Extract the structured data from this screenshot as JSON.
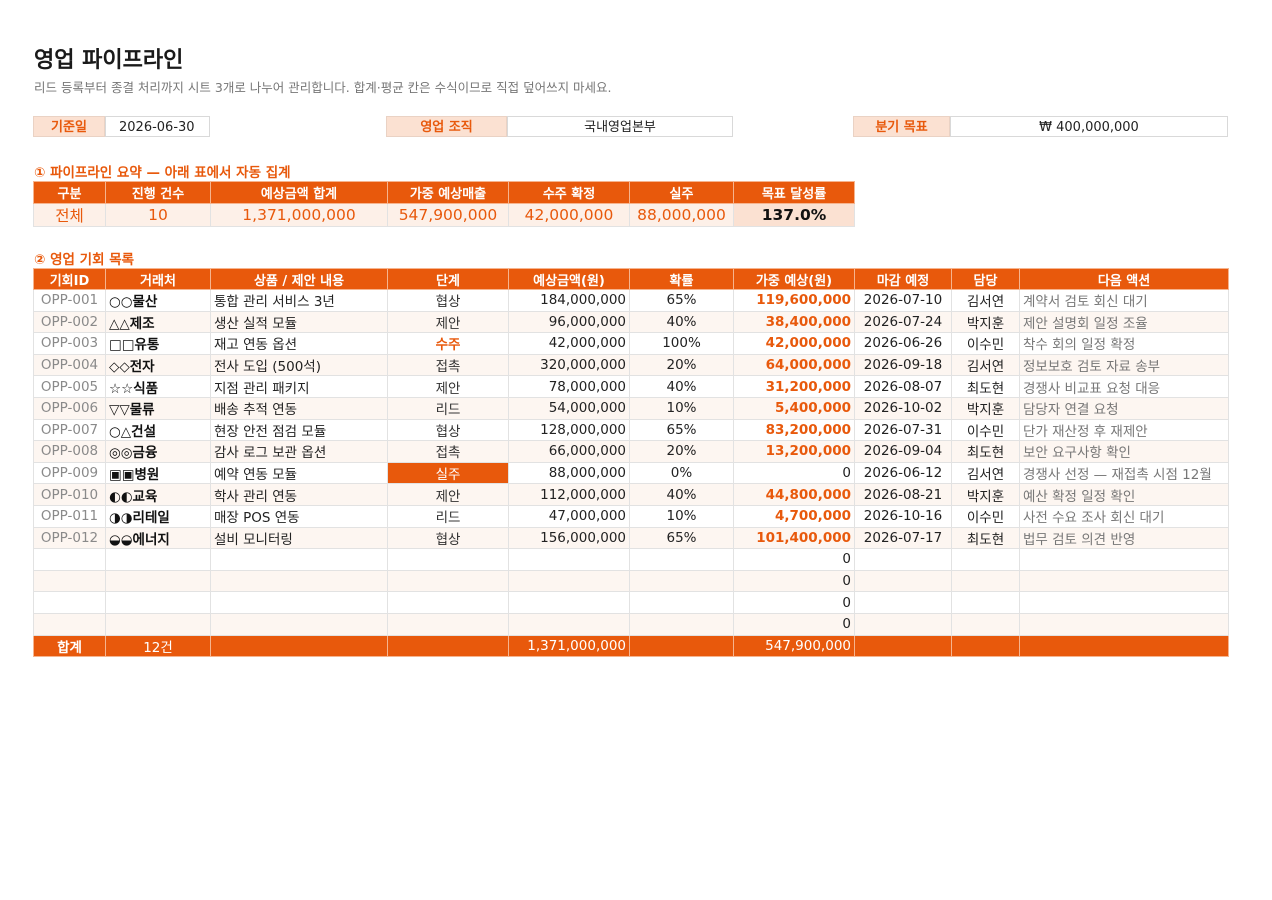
{
  "page": {
    "title": "영업 파이프라인",
    "subtitle": "리드 등록부터 종결 처리까지 시트 3개로 나누어 관리합니다. 합계·평균 칸은 수식이므로 직접 덮어쓰지 마세요."
  },
  "meta": {
    "base_date_label": "기준일",
    "base_date": "2026-06-30",
    "org_label": "영업 조직",
    "org": "국내영업본부",
    "target_label": "분기 목표",
    "target": "₩ 400,000,000"
  },
  "summary": {
    "section_title": "① 파이프라인 요약 — 아래 표에서 자동 집계",
    "headers": [
      "구분",
      "진행 건수",
      "예상금액 합계",
      "가중 예상매출",
      "수주 확정",
      "실주",
      "목표 달성률"
    ],
    "row": [
      "전체",
      "10",
      "1,371,000,000",
      "547,900,000",
      "42,000,000",
      "88,000,000",
      "137.0%"
    ]
  },
  "opportunities": {
    "section_title": "② 영업 기회 목록",
    "headers": [
      "기회ID",
      "거래처",
      "상품 / 제안 내용",
      "단계",
      "예상금액(원)",
      "확률",
      "가중 예상(원)",
      "마감 예정",
      "담당",
      "다음 액션"
    ],
    "rows": [
      [
        "OPP-001",
        "○○물산",
        "통합 관리 서비스 3년",
        "협상",
        "184,000,000",
        "65%",
        "119,600,000",
        "2026-07-10",
        "김서연",
        "계약서 검토 회신 대기"
      ],
      [
        "OPP-002",
        "△△제조",
        "생산 실적 모듈",
        "제안",
        "96,000,000",
        "40%",
        "38,400,000",
        "2026-07-24",
        "박지훈",
        "제안 설명회 일정 조율"
      ],
      [
        "OPP-003",
        "□□유통",
        "재고 연동 옵션",
        "수주",
        "42,000,000",
        "100%",
        "42,000,000",
        "2026-06-26",
        "이수민",
        "착수 회의 일정 확정"
      ],
      [
        "OPP-004",
        "◇◇전자",
        "전사 도입 (500석)",
        "접촉",
        "320,000,000",
        "20%",
        "64,000,000",
        "2026-09-18",
        "김서연",
        "정보보호 검토 자료 송부"
      ],
      [
        "OPP-005",
        "☆☆식품",
        "지점 관리 패키지",
        "제안",
        "78,000,000",
        "40%",
        "31,200,000",
        "2026-08-07",
        "최도현",
        "경쟁사 비교표 요청 대응"
      ],
      [
        "OPP-006",
        "▽▽물류",
        "배송 추적 연동",
        "리드",
        "54,000,000",
        "10%",
        "5,400,000",
        "2026-10-02",
        "박지훈",
        "담당자 연결 요청"
      ],
      [
        "OPP-007",
        "○△건설",
        "현장 안전 점검 모듈",
        "협상",
        "128,000,000",
        "65%",
        "83,200,000",
        "2026-07-31",
        "이수민",
        "단가 재산정 후 재제안"
      ],
      [
        "OPP-008",
        "◎◎금융",
        "감사 로그 보관 옵션",
        "접촉",
        "66,000,000",
        "20%",
        "13,200,000",
        "2026-09-04",
        "최도현",
        "보안 요구사항 확인"
      ],
      [
        "OPP-009",
        "▣▣병원",
        "예약 연동 모듈",
        "실주",
        "88,000,000",
        "0%",
        "0",
        "2026-06-12",
        "김서연",
        "경쟁사 선정 — 재접촉 시점 12월"
      ],
      [
        "OPP-010",
        "◐◐교육",
        "학사 관리 연동",
        "제안",
        "112,000,000",
        "40%",
        "44,800,000",
        "2026-08-21",
        "박지훈",
        "예산 확정 일정 확인"
      ],
      [
        "OPP-011",
        "◑◑리테일",
        "매장 POS 연동",
        "리드",
        "47,000,000",
        "10%",
        "4,700,000",
        "2026-10-16",
        "이수민",
        "사전 수요 조사 회신 대기"
      ],
      [
        "OPP-012",
        "◒◒에너지",
        "설비 모니터링",
        "협상",
        "156,000,000",
        "65%",
        "101,400,000",
        "2026-07-17",
        "최도현",
        "법무 검토 의견 반영"
      ],
      [
        "",
        "",
        "",
        "",
        "",
        "",
        "0",
        "",
        "",
        ""
      ],
      [
        "",
        "",
        "",
        "",
        "",
        "",
        "0",
        "",
        "",
        ""
      ],
      [
        "",
        "",
        "",
        "",
        "",
        "",
        "0",
        "",
        "",
        ""
      ],
      [
        "",
        "",
        "",
        "",
        "",
        "",
        "0",
        "",
        "",
        ""
      ]
    ],
    "total": {
      "label": "합계",
      "count": "12건",
      "amount": "1,371,000,000",
      "weighted": "547,900,000"
    }
  }
}
